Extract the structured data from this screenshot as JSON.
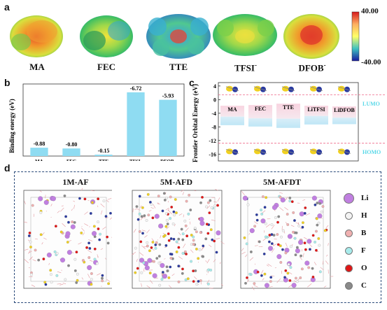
{
  "panel_a": {
    "letter": "a",
    "molecules": [
      "MA",
      "FEC",
      "TTE",
      "TFSI",
      "DFOB"
    ],
    "molecule_superscripts": [
      "",
      "",
      "",
      "-",
      "-"
    ],
    "colorbar": {
      "max": "40.00",
      "min": "-40.00"
    }
  },
  "panel_b": {
    "letter": "b",
    "chart_data": {
      "type": "bar",
      "categories": [
        "MA",
        "FEC",
        "TTE",
        "TFSI-",
        "DFOB-"
      ],
      "values": [
        -0.88,
        -0.8,
        -0.15,
        -6.72,
        -5.93
      ],
      "value_labels": [
        "-0.88",
        "-0.80",
        "-0.15",
        "-6.72",
        "-5.93"
      ],
      "ylabel": "Binding energy (eV)"
    }
  },
  "panel_c": {
    "letter": "c",
    "chart_data": {
      "type": "bar",
      "categories": [
        "MA",
        "FEC",
        "TTE",
        "LiTFSI",
        "LiDFOB"
      ],
      "ylabel": "Frontier Orbital Energy (eV)",
      "y_ticks": [
        "4",
        "0",
        "-4",
        "-8",
        "-12",
        "-16"
      ],
      "ylim": [
        -18,
        5
      ],
      "lumo_label": "LUMO",
      "homo_label": "HOMO"
    }
  },
  "panel_d": {
    "letter": "d",
    "systems": [
      "1M-AF",
      "5M-AFD",
      "5M-AFDT"
    ],
    "legend": [
      {
        "label": "Li",
        "color": "#c07fe0"
      },
      {
        "label": "H",
        "color": "#f3f3f3"
      },
      {
        "label": "B",
        "color": "#f0b0b0"
      },
      {
        "label": "F",
        "color": "#a8ecec"
      },
      {
        "label": "O",
        "color": "#e01515"
      },
      {
        "label": "C",
        "color": "#8a8a8a"
      }
    ]
  }
}
